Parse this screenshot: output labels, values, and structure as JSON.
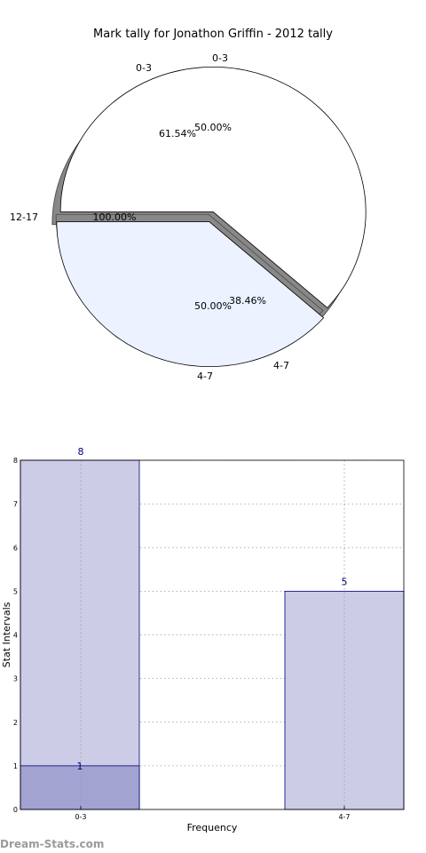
{
  "chart_data": [
    {
      "type": "pie",
      "title": "Mark tally for Jonathon Griffin - 2012 tally",
      "layers": [
        {
          "slices": [
            {
              "label": "0-3",
              "value": 61.54,
              "pct_label": "61.54%"
            },
            {
              "label": "4-7",
              "value": 38.46,
              "pct_label": "38.46%"
            }
          ]
        },
        {
          "slices": [
            {
              "label": "0-3",
              "value": 50.0,
              "pct_label": "50.00%"
            },
            {
              "label": "4-7",
              "value": 50.0,
              "pct_label": "50.00%"
            }
          ]
        },
        {
          "slices": [
            {
              "label": "12-17",
              "value": 100.0,
              "pct_label": "100.00%"
            }
          ]
        }
      ]
    },
    {
      "type": "bar",
      "categories": [
        "0-3",
        "4-7"
      ],
      "series": [
        {
          "values": [
            8,
            5
          ],
          "color": "#cccce6"
        },
        {
          "values": [
            1,
            null
          ],
          "color": "#a3a3d1"
        }
      ],
      "data_labels": [
        "8",
        "5",
        "1"
      ],
      "xlabel": "Frequency",
      "ylabel": "Stat Intervals",
      "ylim": [
        0,
        8
      ],
      "yticks": [
        "0",
        "1",
        "2",
        "3",
        "4",
        "5",
        "6",
        "7",
        "8"
      ],
      "grid": true,
      "label_color": "#000080"
    }
  ],
  "watermark": "Dream-Stats.com"
}
